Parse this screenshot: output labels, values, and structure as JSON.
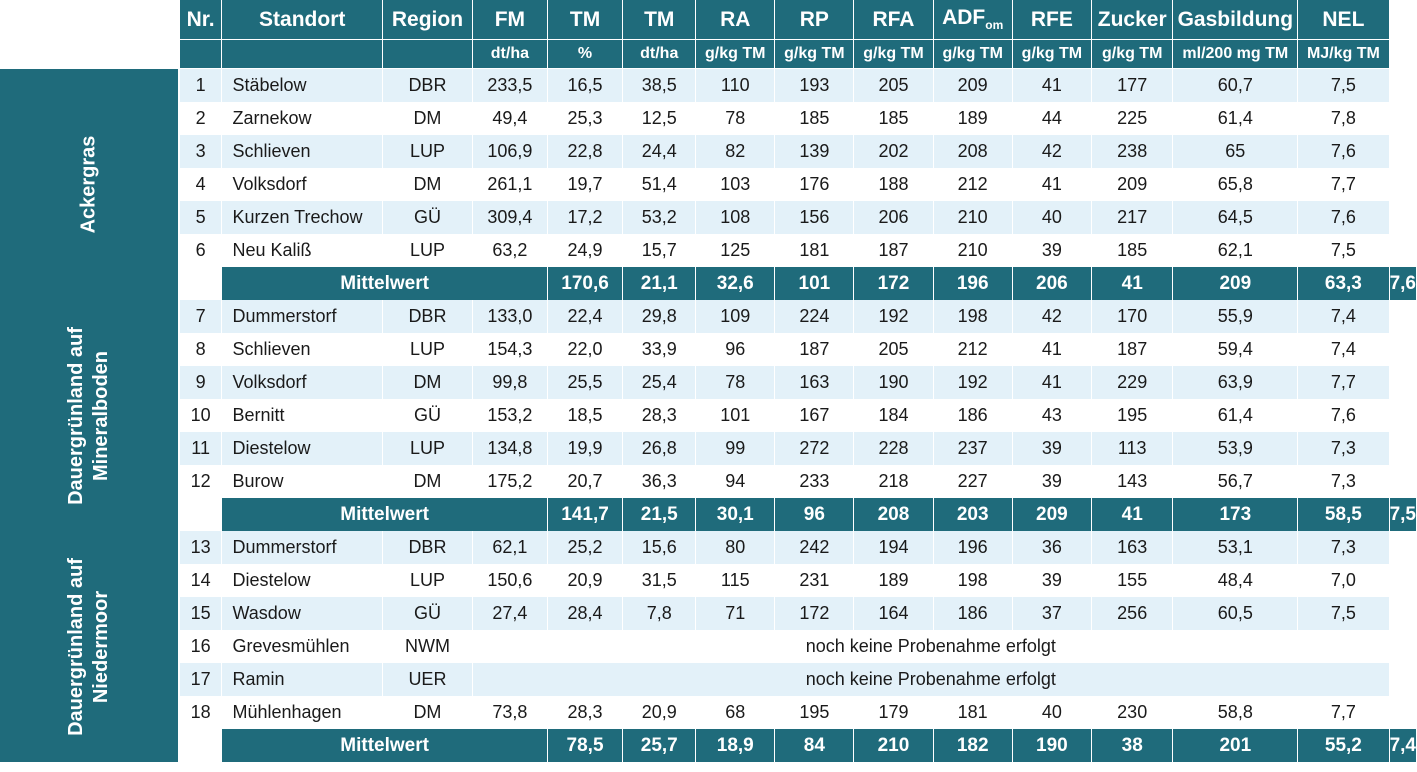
{
  "headers": {
    "nr": "Nr.",
    "standort": "Standort",
    "region": "Region",
    "fm": "FM",
    "tm1": "TM",
    "tm2": "TM",
    "ra": "RA",
    "rp": "RP",
    "rfa": "RFA",
    "adf": "ADF",
    "adf_sub": "om",
    "rfe": "RFE",
    "zucker": "Zucker",
    "gas": "Gasbildung",
    "nel": "NEL"
  },
  "units": {
    "fm": "dt/ha",
    "tm1": "%",
    "tm2": "dt/ha",
    "ra": "g/kg TM",
    "rp": "g/kg TM",
    "rfa": "g/kg TM",
    "adf": "g/kg TM",
    "rfe": "g/kg TM",
    "zucker": "g/kg TM",
    "gas": "ml/200 mg TM",
    "nel": "MJ/kg TM"
  },
  "groups": [
    {
      "label_lines": [
        "Ackergras"
      ]
    },
    {
      "label_lines": [
        "Dauergrünland auf",
        "Mineralboden"
      ]
    },
    {
      "label_lines": [
        "Dauergrünland auf",
        "Niedermoor"
      ]
    }
  ],
  "rows": [
    {
      "nr": "1",
      "standort": "Stäbelow",
      "region": "DBR",
      "fm": "233,5",
      "tm1": "16,5",
      "tm2": "38,5",
      "ra": "110",
      "rp": "193",
      "rfa": "205",
      "adf": "209",
      "rfe": "41",
      "zucker": "177",
      "gas": "60,7",
      "nel": "7,5"
    },
    {
      "nr": "2",
      "standort": "Zarnekow",
      "region": "DM",
      "fm": "49,4",
      "tm1": "25,3",
      "tm2": "12,5",
      "ra": "78",
      "rp": "185",
      "rfa": "185",
      "adf": "189",
      "rfe": "44",
      "zucker": "225",
      "gas": "61,4",
      "nel": "7,8"
    },
    {
      "nr": "3",
      "standort": "Schlieven",
      "region": "LUP",
      "fm": "106,9",
      "tm1": "22,8",
      "tm2": "24,4",
      "ra": "82",
      "rp": "139",
      "rfa": "202",
      "adf": "208",
      "rfe": "42",
      "zucker": "238",
      "gas": "65",
      "nel": "7,6"
    },
    {
      "nr": "4",
      "standort": "Volksdorf",
      "region": "DM",
      "fm": "261,1",
      "tm1": "19,7",
      "tm2": "51,4",
      "ra": "103",
      "rp": "176",
      "rfa": "188",
      "adf": "212",
      "rfe": "41",
      "zucker": "209",
      "gas": "65,8",
      "nel": "7,7"
    },
    {
      "nr": "5",
      "standort": "Kurzen Trechow",
      "region": "GÜ",
      "fm": "309,4",
      "tm1": "17,2",
      "tm2": "53,2",
      "ra": "108",
      "rp": "156",
      "rfa": "206",
      "adf": "210",
      "rfe": "40",
      "zucker": "217",
      "gas": "64,5",
      "nel": "7,6"
    },
    {
      "nr": "6",
      "standort": "Neu Kaliß",
      "region": "LUP",
      "fm": "63,2",
      "tm1": "24,9",
      "tm2": "15,7",
      "ra": "125",
      "rp": "181",
      "rfa": "187",
      "adf": "210",
      "rfe": "39",
      "zucker": "185",
      "gas": "62,1",
      "nel": "7,5"
    },
    {
      "nr": "7",
      "standort": "Dummerstorf",
      "region": "DBR",
      "fm": "133,0",
      "tm1": "22,4",
      "tm2": "29,8",
      "ra": "109",
      "rp": "224",
      "rfa": "192",
      "adf": "198",
      "rfe": "42",
      "zucker": "170",
      "gas": "55,9",
      "nel": "7,4"
    },
    {
      "nr": "8",
      "standort": "Schlieven",
      "region": "LUP",
      "fm": "154,3",
      "tm1": "22,0",
      "tm2": "33,9",
      "ra": "96",
      "rp": "187",
      "rfa": "205",
      "adf": "212",
      "rfe": "41",
      "zucker": "187",
      "gas": "59,4",
      "nel": "7,4"
    },
    {
      "nr": "9",
      "standort": "Volksdorf",
      "region": "DM",
      "fm": "99,8",
      "tm1": "25,5",
      "tm2": "25,4",
      "ra": "78",
      "rp": "163",
      "rfa": "190",
      "adf": "192",
      "rfe": "41",
      "zucker": "229",
      "gas": "63,9",
      "nel": "7,7"
    },
    {
      "nr": "10",
      "standort": "Bernitt",
      "region": "GÜ",
      "fm": "153,2",
      "tm1": "18,5",
      "tm2": "28,3",
      "ra": "101",
      "rp": "167",
      "rfa": "184",
      "adf": "186",
      "rfe": "43",
      "zucker": "195",
      "gas": "61,4",
      "nel": "7,6"
    },
    {
      "nr": "11",
      "standort": "Diestelow",
      "region": "LUP",
      "fm": "134,8",
      "tm1": "19,9",
      "tm2": "26,8",
      "ra": "99",
      "rp": "272",
      "rfa": "228",
      "adf": "237",
      "rfe": "39",
      "zucker": "113",
      "gas": "53,9",
      "nel": "7,3"
    },
    {
      "nr": "12",
      "standort": "Burow",
      "region": "DM",
      "fm": "175,2",
      "tm1": "20,7",
      "tm2": "36,3",
      "ra": "94",
      "rp": "233",
      "rfa": "218",
      "adf": "227",
      "rfe": "39",
      "zucker": "143",
      "gas": "56,7",
      "nel": "7,3"
    },
    {
      "nr": "13",
      "standort": "Dummerstorf",
      "region": "DBR",
      "fm": "62,1",
      "tm1": "25,2",
      "tm2": "15,6",
      "ra": "80",
      "rp": "242",
      "rfa": "194",
      "adf": "196",
      "rfe": "36",
      "zucker": "163",
      "gas": "53,1",
      "nel": "7,3"
    },
    {
      "nr": "14",
      "standort": "Diestelow",
      "region": "LUP",
      "fm": "150,6",
      "tm1": "20,9",
      "tm2": "31,5",
      "ra": "115",
      "rp": "231",
      "rfa": "189",
      "adf": "198",
      "rfe": "39",
      "zucker": "155",
      "gas": "48,4",
      "nel": "7,0"
    },
    {
      "nr": "15",
      "standort": "Wasdow",
      "region": "GÜ",
      "fm": "27,4",
      "tm1": "28,4",
      "tm2": "7,8",
      "ra": "71",
      "rp": "172",
      "rfa": "164",
      "adf": "186",
      "rfe": "37",
      "zucker": "256",
      "gas": "60,5",
      "nel": "7,5"
    },
    {
      "nr": "16",
      "standort": "Grevesmühlen",
      "region": "NWM",
      "note": "noch keine Probenahme erfolgt"
    },
    {
      "nr": "17",
      "standort": "Ramin",
      "region": "UER",
      "note": "noch keine Probenahme erfolgt"
    },
    {
      "nr": "18",
      "standort": "Mühlenhagen",
      "region": "DM",
      "fm": "73,8",
      "tm1": "28,3",
      "tm2": "20,9",
      "ra": "68",
      "rp": "195",
      "rfa": "179",
      "adf": "181",
      "rfe": "40",
      "zucker": "230",
      "gas": "58,8",
      "nel": "7,7"
    }
  ],
  "means": [
    {
      "label": "Mittelwert",
      "fm": "170,6",
      "tm1": "21,1",
      "tm2": "32,6",
      "ra": "101",
      "rp": "172",
      "rfa": "196",
      "adf": "206",
      "rfe": "41",
      "zucker": "209",
      "gas": "63,3",
      "nel": "7,6"
    },
    {
      "label": "Mittelwert",
      "fm": "141,7",
      "tm1": "21,5",
      "tm2": "30,1",
      "ra": "96",
      "rp": "208",
      "rfa": "203",
      "adf": "209",
      "rfe": "41",
      "zucker": "173",
      "gas": "58,5",
      "nel": "7,5"
    },
    {
      "label": "Mittelwert",
      "fm": "78,5",
      "tm1": "25,7",
      "tm2": "18,9",
      "ra": "84",
      "rp": "210",
      "rfa": "182",
      "adf": "190",
      "rfe": "38",
      "zucker": "201",
      "gas": "55,2",
      "nel": "7,4"
    }
  ],
  "colors": {
    "header_bg": "#1f6b7b",
    "stripe": "#e3f1f9"
  }
}
